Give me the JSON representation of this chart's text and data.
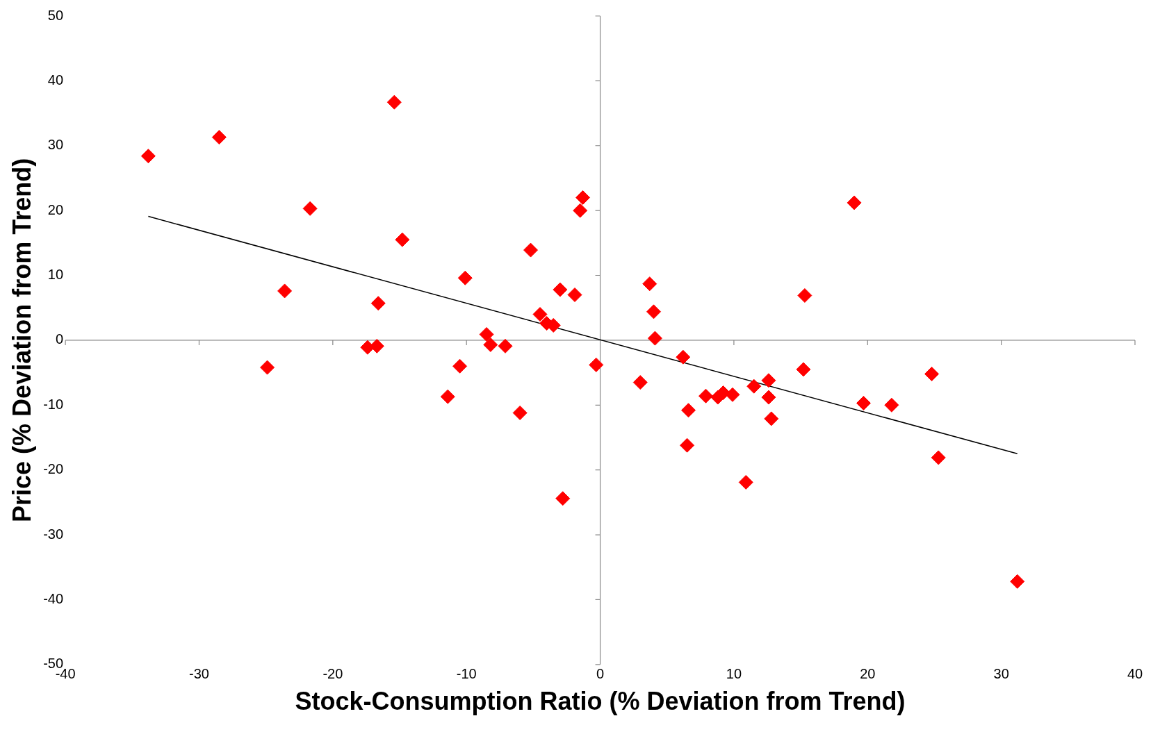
{
  "chart_data": {
    "type": "scatter",
    "xlabel": "Stock-Consumption Ratio (% Deviation from Trend)",
    "ylabel": "Price (% Deviation from Trend)",
    "xlim": [
      -40,
      40
    ],
    "ylim": [
      -50,
      50
    ],
    "xticks": [
      -40,
      -30,
      -20,
      -10,
      0,
      10,
      20,
      30,
      40
    ],
    "yticks": [
      -50,
      -40,
      -30,
      -20,
      -10,
      0,
      10,
      20,
      30,
      40,
      50
    ],
    "marker": "diamond",
    "series": [
      {
        "type": "scatter",
        "color": "#ff0000",
        "x": [
          -33.8,
          -28.5,
          -15.4,
          -21.7,
          -14.8,
          -23.6,
          -24.9,
          -16.6,
          -17.4,
          -16.7,
          -11.4,
          -10.5,
          -10.1,
          -8.5,
          -8.2,
          -7.1,
          -6.0,
          -5.2,
          -4.5,
          -4.0,
          -3.5,
          -3.0,
          -1.9,
          -2.8,
          -1.3,
          -1.5,
          -0.3,
          3.0,
          3.7,
          4.0,
          4.1,
          6.2,
          6.5,
          6.6,
          7.9,
          8.8,
          9.2,
          9.9,
          10.9,
          11.5,
          12.6,
          12.6,
          12.8,
          15.3,
          15.2,
          19.0,
          19.7,
          21.8,
          24.8,
          25.3,
          31.2
        ],
        "values": [
          28.4,
          31.3,
          36.7,
          20.3,
          15.5,
          7.6,
          -4.2,
          5.7,
          -1.1,
          -0.9,
          -8.7,
          -4.0,
          9.6,
          0.9,
          -0.7,
          -0.9,
          -11.2,
          13.9,
          4.0,
          2.6,
          2.3,
          7.8,
          7.0,
          -24.4,
          22.0,
          20.0,
          -3.8,
          -6.5,
          8.7,
          4.4,
          0.3,
          -2.6,
          -16.2,
          -10.8,
          -8.6,
          -8.8,
          -8.1,
          -8.4,
          -21.9,
          -7.1,
          -6.2,
          -8.8,
          -12.1,
          6.9,
          -4.5,
          21.2,
          -9.7,
          -10.0,
          -5.2,
          -18.1,
          -37.2
        ]
      },
      {
        "type": "line",
        "color": "#000000",
        "marker": "none",
        "x": [
          -33.8,
          31.2
        ],
        "values": [
          19.1,
          -17.5
        ]
      }
    ]
  }
}
